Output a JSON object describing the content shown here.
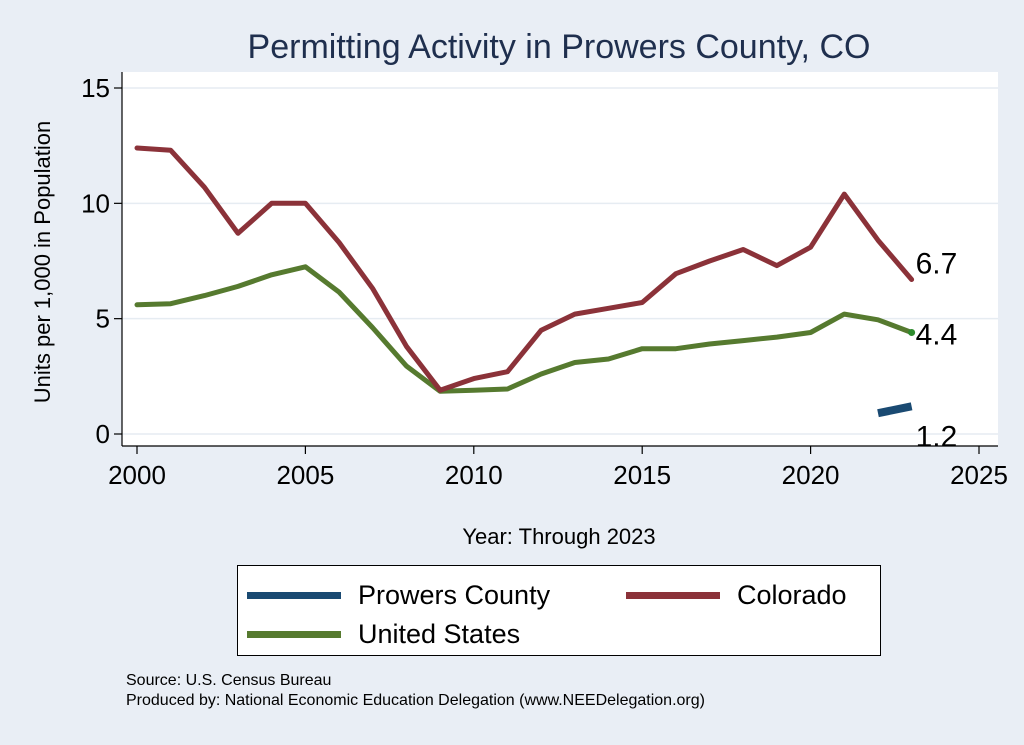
{
  "chart_data": {
    "type": "line",
    "title": "Permitting Activity in Prowers County, CO",
    "xlabel": "Year: Through 2023",
    "ylabel": "Units per 1,000 in Population",
    "xlim": [
      2000,
      2025
    ],
    "ylim": [
      0,
      15
    ],
    "xticks": [
      2000,
      2005,
      2010,
      2015,
      2020,
      2025
    ],
    "yticks": [
      0,
      5,
      10,
      15
    ],
    "grid": true,
    "legend_position": "bottom",
    "series": [
      {
        "name": "Prowers County",
        "color": "#1a4a72",
        "x": [
          2022,
          2023
        ],
        "y": [
          0.9,
          1.2
        ],
        "end_label": "1.2"
      },
      {
        "name": "Colorado",
        "color": "#8b3239",
        "x": [
          2000,
          2001,
          2002,
          2003,
          2004,
          2005,
          2006,
          2007,
          2008,
          2009,
          2010,
          2011,
          2012,
          2013,
          2014,
          2015,
          2016,
          2017,
          2018,
          2019,
          2020,
          2021,
          2022,
          2023
        ],
        "y": [
          12.4,
          12.3,
          10.7,
          8.7,
          10.0,
          10.0,
          8.3,
          6.3,
          3.8,
          1.9,
          2.4,
          2.7,
          4.5,
          5.2,
          5.45,
          5.7,
          6.95,
          7.5,
          8.0,
          7.3,
          8.1,
          10.4,
          8.4,
          6.7
        ],
        "end_label": "6.7"
      },
      {
        "name": "United States",
        "color": "#567a2f",
        "x": [
          2000,
          2001,
          2002,
          2003,
          2004,
          2005,
          2006,
          2007,
          2008,
          2009,
          2010,
          2011,
          2012,
          2013,
          2014,
          2015,
          2016,
          2017,
          2018,
          2019,
          2020,
          2021,
          2022,
          2023
        ],
        "y": [
          5.6,
          5.65,
          6.0,
          6.4,
          6.9,
          7.25,
          6.15,
          4.6,
          2.95,
          1.85,
          1.9,
          1.95,
          2.6,
          3.1,
          3.25,
          3.7,
          3.7,
          3.9,
          4.05,
          4.2,
          4.4,
          5.2,
          4.95,
          4.4
        ],
        "end_label": "4.4"
      }
    ]
  },
  "legend": {
    "items": [
      {
        "label": "Prowers County",
        "color": "#1a4a72"
      },
      {
        "label": "Colorado",
        "color": "#8b3239"
      },
      {
        "label": "United States",
        "color": "#567a2f"
      }
    ]
  },
  "footer": {
    "source": "Source: U.S. Census Bureau",
    "produced_by": "Produced by: National Economic Education Delegation (www.NEEDelegation.org)"
  }
}
